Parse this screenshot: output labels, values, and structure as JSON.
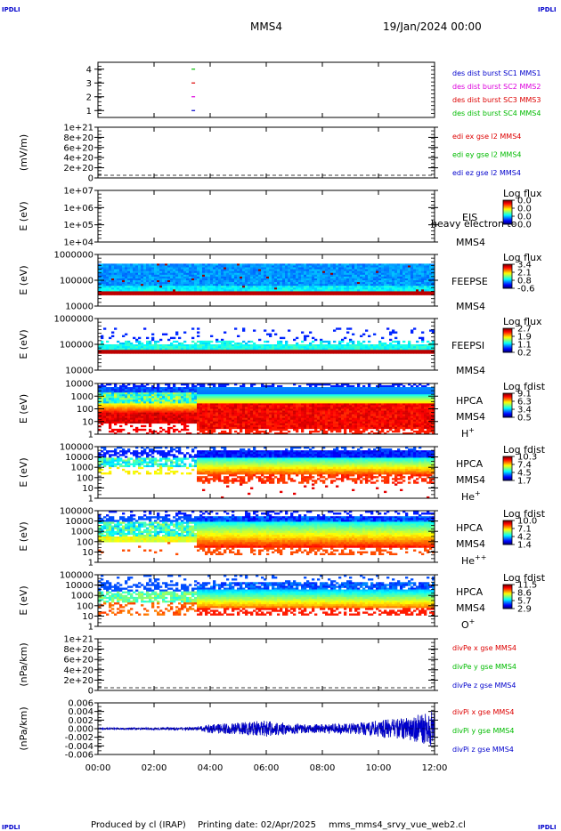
{
  "header": {
    "corner_tl": "IPDLI",
    "corner_tr": "IPDLI",
    "corner_bl": "IPDLI",
    "corner_br": "IPDLI",
    "spacecraft": "MMS4",
    "date": "19/Jan/2024 00:00"
  },
  "footer": {
    "produced": "Produced by cl (IRAP)",
    "printing": "Printing date: 02/Apr/2025",
    "file": "mms_mms4_srvy_vue_web2.cl"
  },
  "time_axis": {
    "range_hours": [
      0,
      12
    ],
    "ticks": [
      "00:00",
      "02:00",
      "04:00",
      "06:00",
      "08:00",
      "10:00",
      "12:00"
    ]
  },
  "colors": {
    "sc1": "#0000cc",
    "sc2": "#dd00dd",
    "sc3": "#dd0000",
    "sc4": "#00bb00"
  },
  "chart_data": [
    {
      "type": "scatter",
      "id": "burst",
      "ylim": [
        0.5,
        4.5
      ],
      "yticks": [
        "4",
        "3",
        "2",
        "1"
      ],
      "ylabel": "",
      "markers": [
        {
          "x": 3.4,
          "y": 4,
          "color": "#00bb00"
        },
        {
          "x": 3.4,
          "y": 3,
          "color": "#dd0000"
        },
        {
          "x": 3.4,
          "y": 2,
          "color": "#dd00dd"
        },
        {
          "x": 3.4,
          "y": 1,
          "color": "#0000cc"
        }
      ],
      "legend": [
        {
          "text": "des dist burst SC1 MMS1",
          "color": "#0000cc"
        },
        {
          "text": "des dist burst SC2 MMS2",
          "color": "#dd00dd"
        },
        {
          "text": "des dist burst SC3 MMS3",
          "color": "#dd0000"
        },
        {
          "text": "des dist burst SC4 MMS4",
          "color": "#00bb00"
        }
      ]
    },
    {
      "type": "line",
      "id": "edi",
      "ylabel": "(mV/m)",
      "yticks": [
        "1e+21",
        "8e+20",
        "6e+20",
        "4e+20",
        "2e+20",
        "0"
      ],
      "ylim": [
        0,
        1e+21
      ],
      "series": [
        {
          "name": "edi ex gse l2 MMS4",
          "color": "#dd0000",
          "values": []
        },
        {
          "name": "edi ey gse l2 MMS4",
          "color": "#00bb00",
          "values": []
        },
        {
          "name": "edi ez gse l2 MMS4",
          "color": "#0000cc",
          "values": []
        }
      ]
    },
    {
      "type": "heatmap",
      "id": "eis",
      "ylabel": "E (eV)",
      "yticks": [
        "1e+07",
        "1e+06",
        "1e+05",
        "1e+04"
      ],
      "ylim": [
        10000,
        10000000
      ],
      "log_y": true,
      "instrument": "EIS",
      "spacecraft": "MMS4",
      "species": "heavy electron to",
      "colorbar_title": "Log flux",
      "colorbar_ticks": [
        "0.0",
        "0.0",
        "0.0",
        "0.0"
      ],
      "filled": false
    },
    {
      "type": "heatmap",
      "id": "feepse",
      "ylabel": "E (eV)",
      "yticks": [
        "1000000",
        "100000",
        "10000"
      ],
      "ylim": [
        10000,
        1000000
      ],
      "log_y": true,
      "instrument": "FEEPSE",
      "spacecraft": "MMS4",
      "colorbar_title": "Log flux",
      "colorbar_ticks": [
        "3.4",
        "2.1",
        "0.8",
        "-0.6"
      ],
      "profile": "feeps_e"
    },
    {
      "type": "heatmap",
      "id": "feepsi",
      "ylabel": "E (eV)",
      "yticks": [
        "1000000",
        "100000",
        "10000"
      ],
      "ylim": [
        10000,
        1000000
      ],
      "log_y": true,
      "instrument": "FEEPSI",
      "spacecraft": "MMS4",
      "colorbar_title": "Log flux",
      "colorbar_ticks": [
        "2.7",
        "1.9",
        "1.1",
        "0.2"
      ],
      "profile": "feeps_i"
    },
    {
      "type": "heatmap",
      "id": "hpca_h",
      "ylabel": "E (eV)",
      "yticks": [
        "10000",
        "1000",
        "100",
        "10",
        "1"
      ],
      "ylim": [
        1,
        40000
      ],
      "log_y": true,
      "instrument": "HPCA",
      "spacecraft": "MMS4",
      "species": "H",
      "species_sup": "+",
      "colorbar_title": "Log fdist",
      "colorbar_ticks": [
        "9.1",
        "6.3",
        "3.4",
        "0.5"
      ],
      "profile": "h"
    },
    {
      "type": "heatmap",
      "id": "hpca_he",
      "ylabel": "E (eV)",
      "yticks": [
        "100000",
        "10000",
        "1000",
        "100",
        "10",
        "1"
      ],
      "ylim": [
        1,
        100000
      ],
      "log_y": true,
      "instrument": "HPCA",
      "spacecraft": "MMS4",
      "species": "He",
      "species_sup": "+",
      "colorbar_title": "Log fdist",
      "colorbar_ticks": [
        "10.3",
        "7.4",
        "4.5",
        "1.7"
      ],
      "profile": "he"
    },
    {
      "type": "heatmap",
      "id": "hpca_hepp",
      "ylabel": "E (eV)",
      "yticks": [
        "100000",
        "10000",
        "1000",
        "100",
        "10",
        "1"
      ],
      "ylim": [
        1,
        100000
      ],
      "log_y": true,
      "instrument": "HPCA",
      "spacecraft": "MMS4",
      "species": "He",
      "species_sup": "++",
      "colorbar_title": "Log fdist",
      "colorbar_ticks": [
        "10.0",
        "7.1",
        "4.2",
        "1.4"
      ],
      "profile": "hepp"
    },
    {
      "type": "heatmap",
      "id": "hpca_o",
      "ylabel": "E (eV)",
      "yticks": [
        "100000",
        "10000",
        "1000",
        "100",
        "10",
        "1"
      ],
      "ylim": [
        1,
        100000
      ],
      "log_y": true,
      "instrument": "HPCA",
      "spacecraft": "MMS4",
      "species": "O",
      "species_sup": "+",
      "colorbar_title": "Log fdist",
      "colorbar_ticks": [
        "11.5",
        "8.6",
        "5.7",
        "2.9"
      ],
      "profile": "o"
    },
    {
      "type": "line",
      "id": "divpe",
      "ylabel": "(nPa/km)",
      "yticks": [
        "1e+21",
        "8e+20",
        "6e+20",
        "4e+20",
        "2e+20",
        "0"
      ],
      "ylim": [
        0,
        1e+21
      ],
      "series": [
        {
          "name": "divPe x gse MMS4",
          "color": "#dd0000",
          "values": []
        },
        {
          "name": "divPe y gse MMS4",
          "color": "#00bb00",
          "values": []
        },
        {
          "name": "divPe z gse MMS4",
          "color": "#0000cc",
          "values": []
        }
      ]
    },
    {
      "type": "line",
      "id": "divpi",
      "ylabel": "(nPa/km)",
      "yticks": [
        "0.006",
        "0.004",
        "0.002",
        "0.000",
        "-0.002",
        "-0.004",
        "-0.006"
      ],
      "ylim": [
        -0.007,
        0.007
      ],
      "series": [
        {
          "name": "divPi x gse MMS4",
          "color": "#dd0000"
        },
        {
          "name": "divPi y gse MMS4",
          "color": "#00bb00"
        },
        {
          "name": "divPi z gse MMS4",
          "color": "#0000cc"
        }
      ],
      "envelope_hours": [
        0,
        2,
        3.5,
        4,
        5,
        6,
        7,
        8,
        9,
        10,
        11,
        12
      ],
      "envelope_amp": [
        0.0002,
        0.0003,
        0.0004,
        0.0012,
        0.0016,
        0.0022,
        0.0013,
        0.0012,
        0.0015,
        0.0022,
        0.003,
        0.005
      ]
    }
  ]
}
